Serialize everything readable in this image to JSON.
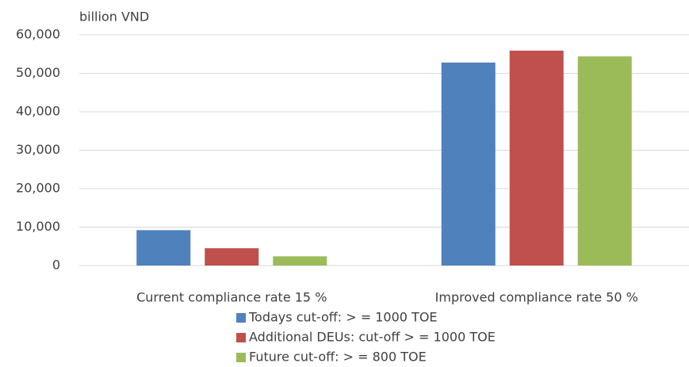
{
  "chart_data": {
    "type": "bar",
    "y_label": "billion VND",
    "categories": [
      "Current compliance rate 15 %",
      "Improved compliance rate 50 %"
    ],
    "series": [
      {
        "name": "Todays cut-off: > = 1000 TOE",
        "color": "#4f81bd",
        "values": [
          9200,
          52800
        ]
      },
      {
        "name": "Additional DEUs: cut-off > = 1000 TOE",
        "color": "#c0504d",
        "values": [
          4500,
          55900
        ]
      },
      {
        "name": "Future cut-off: > = 800 TOE",
        "color": "#9bbb59",
        "values": [
          2400,
          54400
        ]
      }
    ],
    "ylim": [
      0,
      60000
    ],
    "yticks": [
      0,
      {
        "value": 10000,
        "label": "10,000"
      },
      {
        "value": 20000,
        "label": "20,000"
      },
      {
        "value": 30000,
        "label": "30,000"
      },
      {
        "value": 40000,
        "label": "40,000"
      },
      {
        "value": 50000,
        "label": "50,000"
      },
      {
        "value": 60000,
        "label": "60,000"
      }
    ],
    "grid": true,
    "legend": "bottom"
  }
}
